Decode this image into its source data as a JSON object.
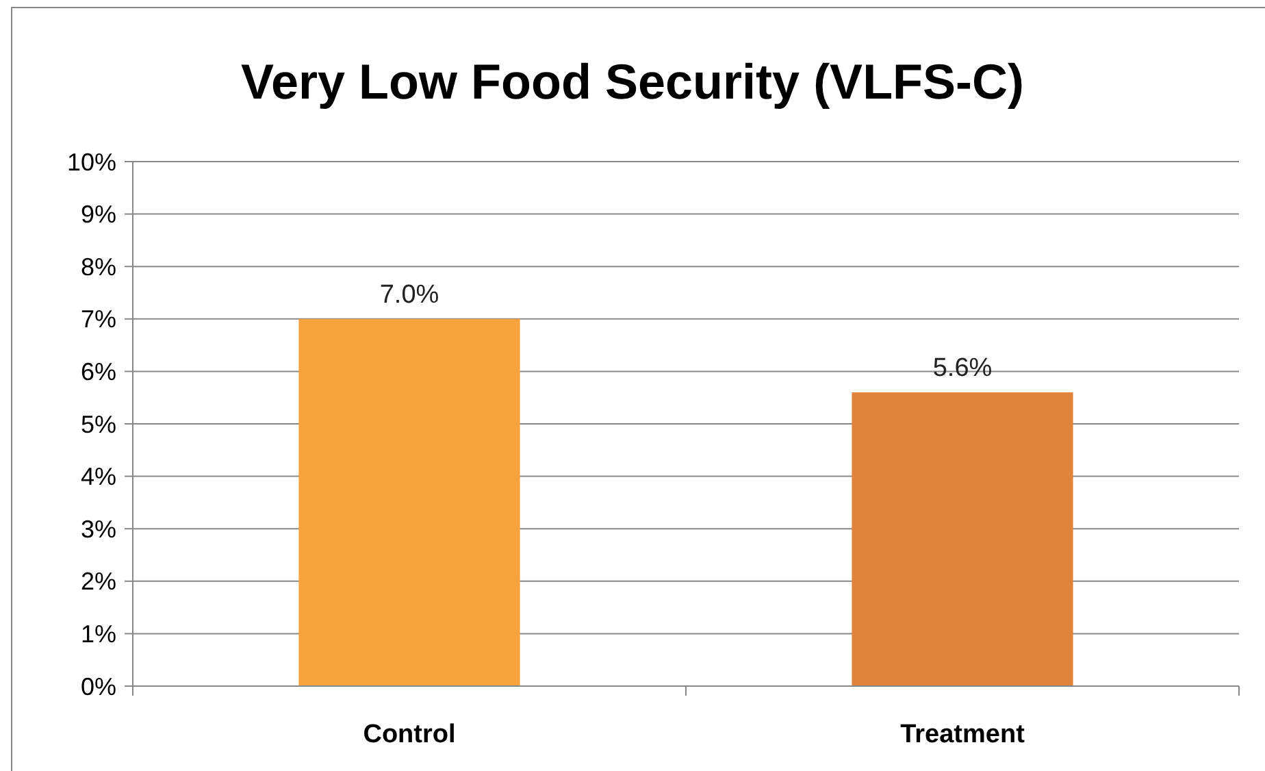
{
  "chart_data": {
    "type": "bar",
    "title": "Very Low Food Security (VLFS-C)",
    "categories": [
      "Control",
      "Treatment"
    ],
    "values": [
      7.0,
      5.6
    ],
    "colors": [
      "#f6a33e",
      "#e0843b"
    ],
    "value_labels": [
      "7.0%",
      "5.6%"
    ],
    "ylim": [
      0,
      10
    ],
    "yticks": [
      {
        "value": 0,
        "label": "0%"
      },
      {
        "value": 1,
        "label": "1%"
      },
      {
        "value": 2,
        "label": "2%"
      },
      {
        "value": 3,
        "label": "3%"
      },
      {
        "value": 4,
        "label": "4%"
      },
      {
        "value": 5,
        "label": "5%"
      },
      {
        "value": 6,
        "label": "6%"
      },
      {
        "value": 7,
        "label": "7%"
      },
      {
        "value": 8,
        "label": "8%"
      },
      {
        "value": 9,
        "label": "9%"
      },
      {
        "value": 10,
        "label": "10%"
      }
    ],
    "grid": "y"
  }
}
